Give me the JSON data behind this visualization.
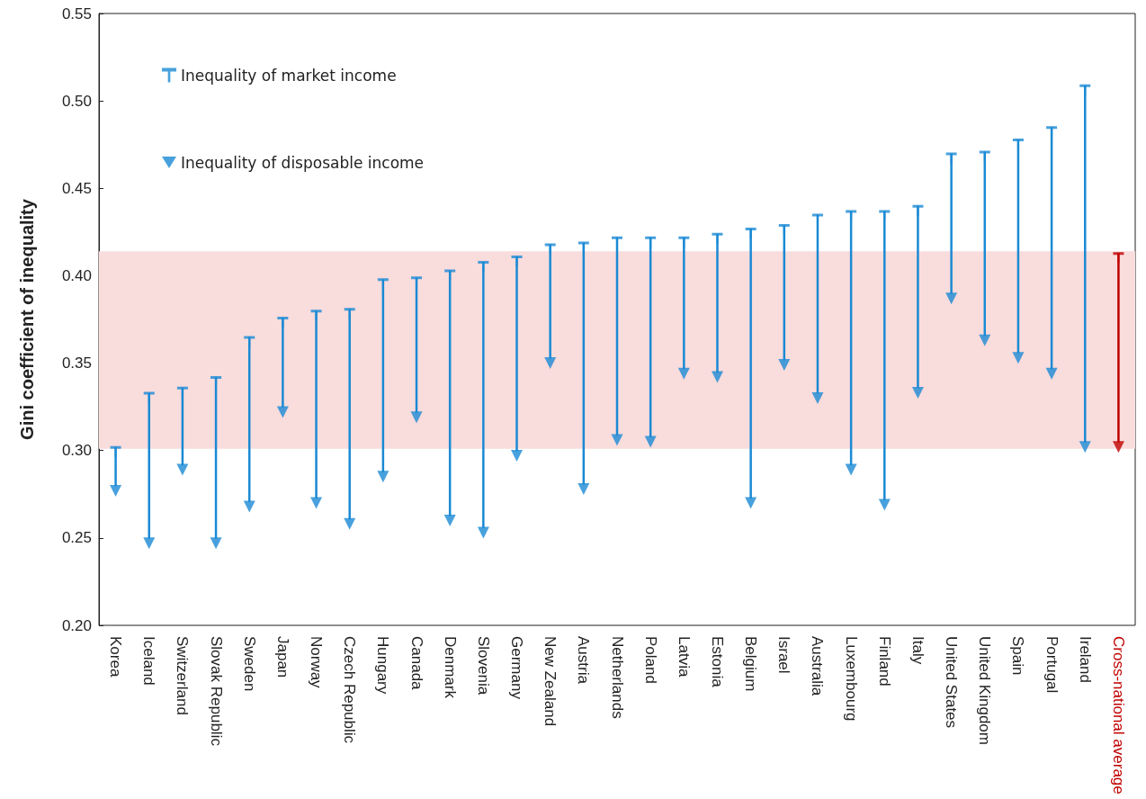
{
  "chart_data": {
    "type": "scatter",
    "ylabel": "Gini coefficient of inequality",
    "categories": [
      "Korea",
      "Iceland",
      "Switzerland",
      "Slovak Republic",
      "Sweden",
      "Japan",
      "Norway",
      "Czech Republic",
      "Hungary",
      "Canada",
      "Denmark",
      "Slovenia",
      "Germany",
      "New Zealand",
      "Austria",
      "Netherlands",
      "Poland",
      "Latvia",
      "Estonia",
      "Belgium",
      "Israel",
      "Australia",
      "Luxembourg",
      "Finland",
      "Italy",
      "United States",
      "United Kingdom",
      "Spain",
      "Portugal",
      "Ireland",
      "Cross-national average"
    ],
    "series": [
      {
        "name": "Inequality of market income",
        "color": "#1a8ad4",
        "colors": [
          "#1a8ad4",
          "#1a8ad4",
          "#1a8ad4",
          "#1a8ad4",
          "#1a8ad4",
          "#1a8ad4",
          "#1a8ad4",
          "#1a8ad4",
          "#1a8ad4",
          "#1a8ad4",
          "#1a8ad4",
          "#1a8ad4",
          "#1a8ad4",
          "#1a8ad4",
          "#1a8ad4",
          "#1a8ad4",
          "#1a8ad4",
          "#1a8ad4",
          "#1a8ad4",
          "#1a8ad4",
          "#1a8ad4",
          "#1a8ad4",
          "#1a8ad4",
          "#1a8ad4",
          "#1a8ad4",
          "#1a8ad4",
          "#1a8ad4",
          "#1a8ad4",
          "#1a8ad4",
          "#1a8ad4",
          "#c00000"
        ],
        "values": [
          0.302,
          0.333,
          0.336,
          0.342,
          0.365,
          0.376,
          0.38,
          0.381,
          0.398,
          0.399,
          0.403,
          0.408,
          0.411,
          0.418,
          0.419,
          0.422,
          0.422,
          0.422,
          0.424,
          0.427,
          0.429,
          0.435,
          0.437,
          0.437,
          0.44,
          0.47,
          0.471,
          0.478,
          0.485,
          0.509,
          0.413
        ]
      },
      {
        "name": "Inequality of disposable income",
        "color": "#1a8ad4",
        "marker": "triangle",
        "colors": [
          "#1a8ad4",
          "#1a8ad4",
          "#1a8ad4",
          "#1a8ad4",
          "#1a8ad4",
          "#1a8ad4",
          "#1a8ad4",
          "#1a8ad4",
          "#1a8ad4",
          "#1a8ad4",
          "#1a8ad4",
          "#1a8ad4",
          "#1a8ad4",
          "#1a8ad4",
          "#1a8ad4",
          "#1a8ad4",
          "#1a8ad4",
          "#1a8ad4",
          "#1a8ad4",
          "#1a8ad4",
          "#1a8ad4",
          "#1a8ad4",
          "#1a8ad4",
          "#1a8ad4",
          "#1a8ad4",
          "#1a8ad4",
          "#1a8ad4",
          "#1a8ad4",
          "#1a8ad4",
          "#1a8ad4",
          "#c00000"
        ],
        "values": [
          0.277,
          0.247,
          0.289,
          0.247,
          0.268,
          0.322,
          0.27,
          0.258,
          0.285,
          0.319,
          0.26,
          0.253,
          0.297,
          0.35,
          0.278,
          0.306,
          0.305,
          0.344,
          0.342,
          0.27,
          0.349,
          0.33,
          0.289,
          0.269,
          0.333,
          0.387,
          0.363,
          0.353,
          0.344,
          0.302,
          0.302
        ]
      }
    ],
    "bands": [
      {
        "axis": "y",
        "from": 0.301,
        "to": 0.414,
        "color": "#f9dcdc"
      }
    ],
    "ylim": [
      0.2,
      0.55
    ],
    "yticks": [
      {
        "value": 0.2,
        "label": "0.20"
      },
      {
        "value": 0.25,
        "label": "0.25"
      },
      {
        "value": 0.3,
        "label": "0.30"
      },
      {
        "value": 0.35,
        "label": "0.35"
      },
      {
        "value": 0.4,
        "label": "0.40"
      },
      {
        "value": 0.45,
        "label": "0.45"
      },
      {
        "value": 0.5,
        "label": "0.50"
      },
      {
        "value": 0.55,
        "label": "0.55"
      }
    ],
    "grid": false,
    "legend": "top left"
  }
}
